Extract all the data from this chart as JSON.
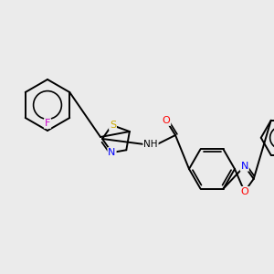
{
  "background_color": "#ebebeb",
  "bond_color": "#000000",
  "atom_colors": {
    "F": "#cc00cc",
    "N": "#0000ff",
    "O": "#ff0000",
    "S": "#ccaa00",
    "C": "#000000",
    "H": "#000000"
  },
  "figsize": [
    3.0,
    3.0
  ],
  "dpi": 100,
  "lw": 1.4,
  "fontsize": 8.0
}
